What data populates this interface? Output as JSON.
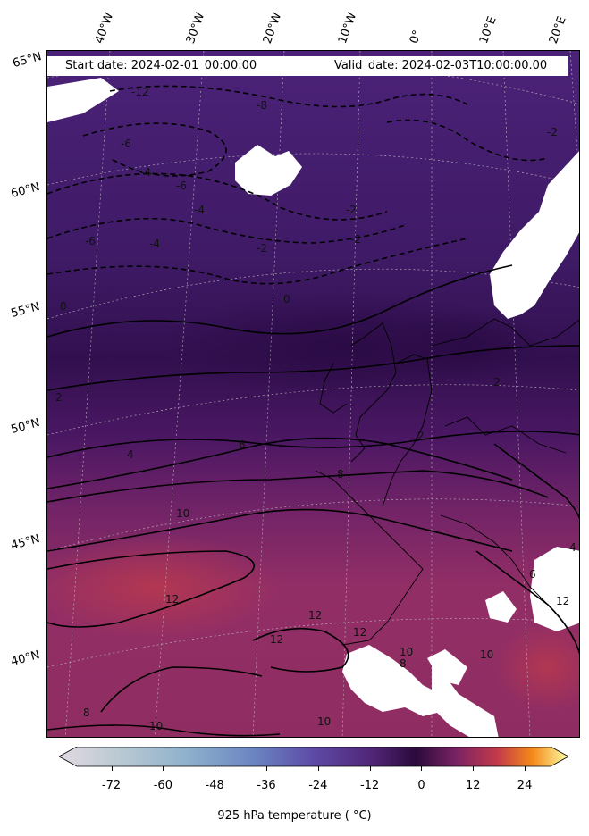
{
  "header": {
    "start_date": "Start date: 2024-02-01_00:00:00",
    "valid_date": "Valid_date: 2024-02-03T10:00:00.00"
  },
  "axes": {
    "lon_labels": [
      "40°W",
      "30°W",
      "20°W",
      "10°W",
      "0°",
      "10°E",
      "20°E"
    ],
    "lat_labels": [
      "65°N",
      "60°N",
      "55°N",
      "50°N",
      "45°N",
      "40°N"
    ]
  },
  "contour_labels": [
    "-12",
    "-8",
    "-6",
    "-6",
    "-4",
    "-4",
    "-2",
    "-2",
    "-6",
    "-4",
    "-2",
    "0",
    "-2",
    "2",
    "0",
    "2",
    "4",
    "6",
    "8",
    "10",
    "12",
    "12",
    "12",
    "12",
    "10",
    "8",
    "10",
    "10",
    "8",
    "10",
    "12",
    "6",
    "4",
    "2"
  ],
  "colorbar": {
    "ticks": [
      "-72",
      "-60",
      "-48",
      "-36",
      "-24",
      "-12",
      "0",
      "12",
      "24"
    ],
    "label": "925 hPa temperature ($^\\circ$C)",
    "label_display": "925 hPa temperature ( °C)",
    "range": [
      -80,
      30
    ],
    "colormap": "twilight-inferno",
    "extend": "both"
  },
  "colors": {
    "cold_purple": "#4a1f6e",
    "mid_purple": "#3a1458",
    "warm_magenta": "#8c2f66",
    "hot_red": "#b83a4a",
    "missing": "#ffffff"
  }
}
